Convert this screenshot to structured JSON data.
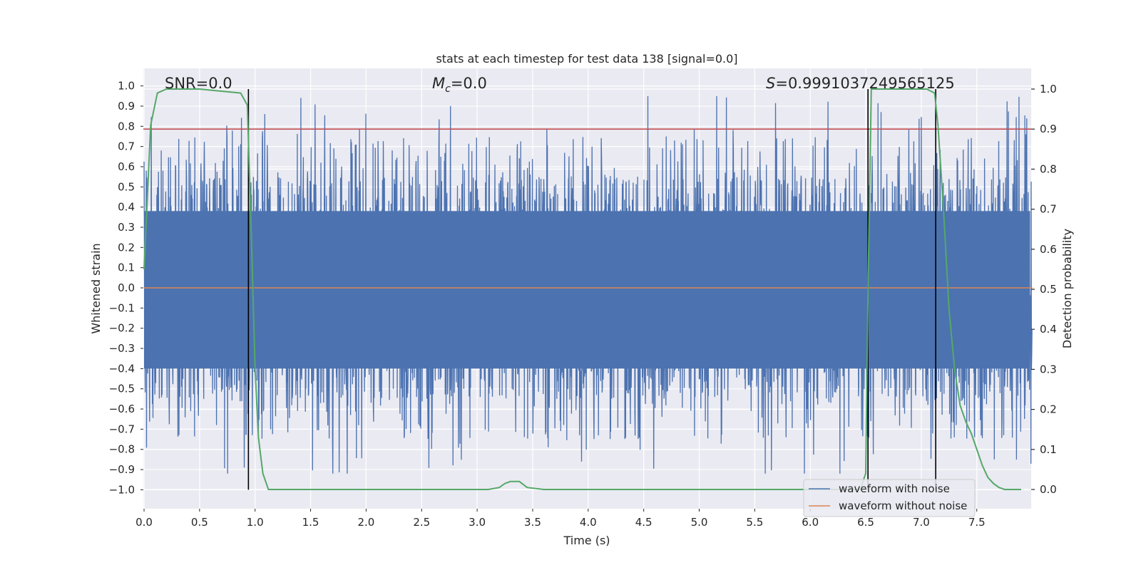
{
  "chart_data": {
    "type": "line",
    "title": "stats at each timestep for test data 138 [signal=0.0]",
    "xlabel": "Time (s)",
    "ylabel_left": "Whitened strain",
    "ylabel_right": "Detection probability",
    "xlim": [
      0.0,
      8.0
    ],
    "ylim_left": [
      -1.1,
      1.1
    ],
    "ylim_right": [
      -0.05,
      1.03
    ],
    "x_ticks": [
      "0.0",
      "0.5",
      "1.0",
      "1.5",
      "2.0",
      "2.5",
      "3.0",
      "3.5",
      "4.0",
      "4.5",
      "5.0",
      "5.5",
      "6.0",
      "6.5",
      "7.0",
      "7.5"
    ],
    "y_ticks_left": [
      "1.0",
      "0.9",
      "0.8",
      "0.7",
      "0.6",
      "0.5",
      "0.4",
      "0.3",
      "0.2",
      "0.1",
      "0.0",
      "−0.1",
      "−0.2",
      "−0.3",
      "−0.4",
      "−0.5",
      "−0.6",
      "−0.7",
      "−0.8",
      "−0.9",
      "−1.0"
    ],
    "y_ticks_right": [
      "1.0",
      "0.9",
      "0.8",
      "0.7",
      "0.6",
      "0.5",
      "0.4",
      "0.3",
      "0.2",
      "0.1",
      "0.0"
    ],
    "grid": true,
    "legend_position": "lower-right",
    "annotations": {
      "snr": "SNR=0.0",
      "mc_symbol": "M",
      "mc_subscript": "c",
      "mc_value": "=0.0",
      "s_symbol": "S",
      "s_value": "=0.9991037249565125"
    },
    "threshold_right_axis": 0.9,
    "vertical_markers_s": [
      0.94,
      6.52,
      7.13
    ],
    "series": [
      {
        "name": "waveform with noise",
        "color": "#4c72b0",
        "axis": "left",
        "description": "dense noise band, mostly within ±0.4, peaks reaching ~±0.98",
        "envelope_max": 0.98,
        "envelope_min": -0.92
      },
      {
        "name": "waveform without noise",
        "color": "#dd8452",
        "axis": "left",
        "x": [
          0.0,
          8.0
        ],
        "y": [
          0.0,
          0.0
        ]
      },
      {
        "axis": "right",
        "color": "#55a868",
        "x": [
          0.0,
          0.06,
          0.12,
          0.2,
          0.5,
          0.87,
          0.93,
          0.97,
          1.0,
          1.03,
          1.07,
          1.12,
          1.2,
          3.1,
          3.2,
          3.25,
          3.3,
          3.38,
          3.45,
          3.6,
          6.45,
          6.5,
          6.52,
          6.55,
          6.58,
          6.62,
          7.05,
          7.12,
          7.15,
          7.2,
          7.25,
          7.3,
          7.35,
          7.4,
          7.45,
          7.5,
          7.55,
          7.6,
          7.65,
          7.7,
          7.75,
          7.9
        ],
        "y": [
          0.55,
          0.91,
          0.99,
          1.0,
          1.0,
          0.99,
          0.96,
          0.6,
          0.3,
          0.13,
          0.04,
          0.0,
          0.0,
          0.0,
          0.005,
          0.015,
          0.02,
          0.02,
          0.005,
          0.0,
          0.0,
          0.04,
          0.5,
          1.0,
          1.0,
          1.0,
          1.0,
          0.99,
          0.91,
          0.7,
          0.45,
          0.3,
          0.21,
          0.17,
          0.14,
          0.1,
          0.06,
          0.03,
          0.015,
          0.005,
          0.0,
          0.0
        ]
      }
    ]
  }
}
